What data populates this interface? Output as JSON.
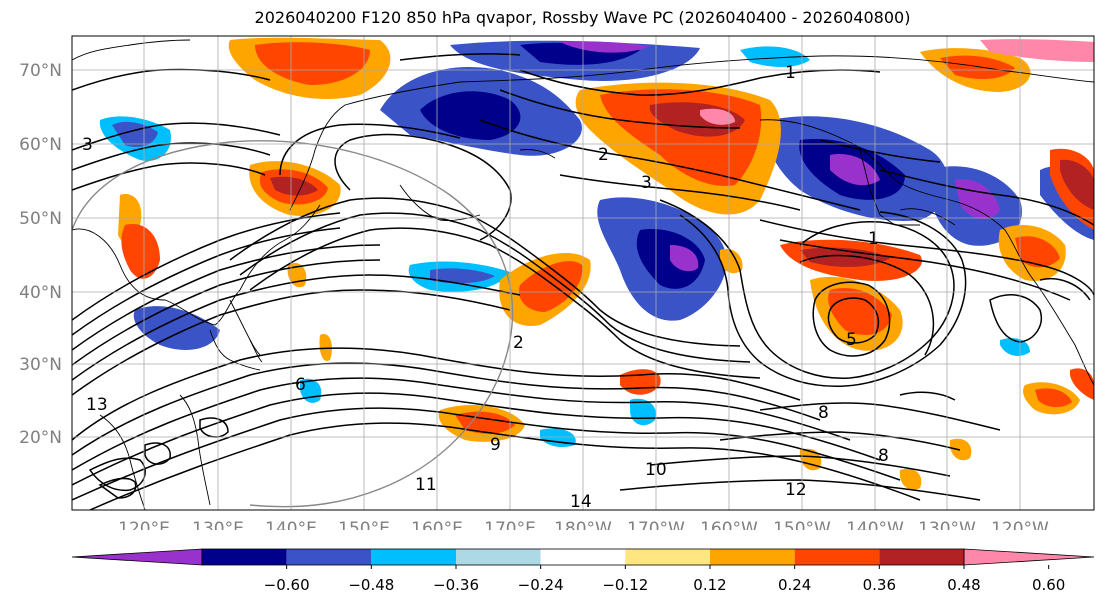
{
  "title": "2026040200 F120 850 hPa qvapor, Rossby Wave PC (2026040400 - 2026040800)",
  "lat_labels": [
    "70°N",
    "60°N",
    "50°N",
    "40°N",
    "30°N",
    "20°N"
  ],
  "lon_labels": [
    "120°E",
    "130°E",
    "140°E",
    "150°E",
    "160°E",
    "170°E",
    "180°W",
    "170°W",
    "160°W",
    "150°W",
    "140°W",
    "130°W",
    "120°W"
  ],
  "contour_labels": [
    "1",
    "2",
    "3",
    "1",
    "5",
    "8",
    "9",
    "10",
    "11",
    "12",
    "13",
    "14",
    "2",
    "3",
    "6",
    "8"
  ],
  "colorbar": {
    "colors": [
      "#9932cc",
      "#00008b",
      "#3a54c8",
      "#00bfff",
      "#add8e6",
      "#ffffff",
      "#ffe680",
      "#ffa500",
      "#ff4500",
      "#b22222",
      "#ff88aa"
    ],
    "tick_labels": [
      "−0.60",
      "−0.48",
      "−0.36",
      "−0.24",
      "−0.12",
      "0.12",
      "0.24",
      "0.36",
      "0.48",
      "0.60"
    ]
  },
  "colors": {
    "grid": "#aaaaaa",
    "axis_label": "#808080",
    "contour": "#000000",
    "coast": "#000000"
  }
}
